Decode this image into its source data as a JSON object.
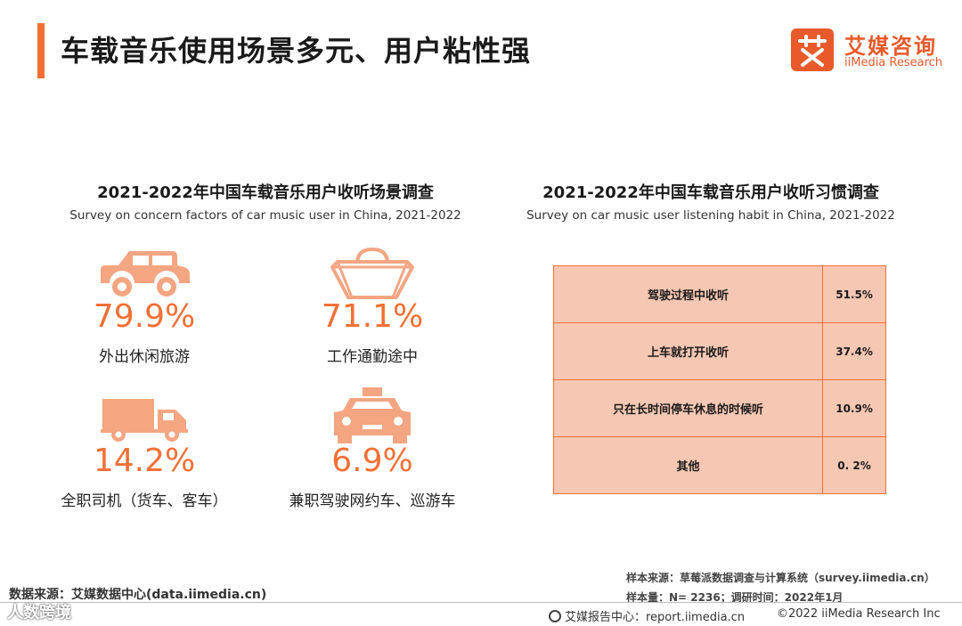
{
  "page": {
    "title": "车载音乐使用场景多元、用户粘性强"
  },
  "logo": {
    "mark_char": "艾",
    "name_cn": "艾媒咨询",
    "name_en": "iiMedia Research"
  },
  "left_section": {
    "title": "2021-2022年中国车载音乐用户收听场景调查",
    "subtitle": "Survey on concern factors of car music user in China, 2021-2022"
  },
  "right_section": {
    "title": "2021-2022年中国车载音乐用户收听习惯调查",
    "subtitle": "Survey on car music user listening habit in China, 2021-2022"
  },
  "chart_data": [
    {
      "type": "infographic",
      "title": "2021-2022年中国车载音乐用户收听场景调查",
      "subtitle": "Survey on concern factors of car music user in China, 2021-2022",
      "items": [
        {
          "label": "外出休闲旅游",
          "value": 79.9,
          "display": "79.9%",
          "icon": "suv-car-icon"
        },
        {
          "label": "工作通勤途中",
          "value": 71.1,
          "display": "71.1%",
          "icon": "handbag-icon"
        },
        {
          "label": "全职司机（货车、客车）",
          "value": 14.2,
          "display": "14.2%",
          "icon": "truck-icon"
        },
        {
          "label": "兼职驾驶网约车、巡游车",
          "value": 6.9,
          "display": "6.9%",
          "icon": "taxi-icon"
        }
      ]
    },
    {
      "type": "table",
      "title": "2021-2022年中国车载音乐用户收听习惯调查",
      "subtitle": "Survey on car music user listening habit in China, 2021-2022",
      "rows": [
        {
          "label": "驾驶过程中收听",
          "value": 51.5,
          "display": "51.5%"
        },
        {
          "label": "上车就打开收听",
          "value": 37.4,
          "display": "37.4%"
        },
        {
          "label": "只在长时间停车休息的时候听",
          "value": 10.9,
          "display": "10.9%"
        },
        {
          "label": "其他",
          "value": 0.2,
          "display": "0. 2%"
        }
      ]
    }
  ],
  "footer": {
    "data_source": "数据来源：艾媒数据中心(data.iimedia.cn)",
    "sample_source": "样本来源：草莓派数据调查与计算系统（survey.iimedia.cn）",
    "sample_size": "样本量：N= 2236；调研时间：2022年1月",
    "report_center": "艾媒报告中心：report.iimedia.cn",
    "copyright": "©2022  iiMedia Research  Inc",
    "watermark": "人数跨境"
  },
  "colors": {
    "accent": "#f27036",
    "icon_fill": "#f4a582",
    "table_fill": "#f6c7b2",
    "brand": "#e85a2a"
  }
}
